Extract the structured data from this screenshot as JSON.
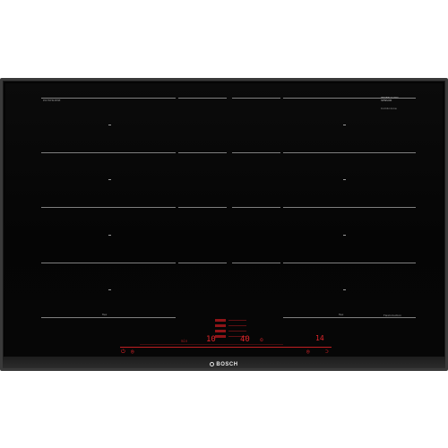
{
  "product": {
    "brand": "BOSCH",
    "top_left_label": "PXY875DE3E",
    "top_right_label": "PERFECT FRY SENSOR",
    "top_right_sublabel": "Combi zone",
    "bottom_right_label": "FlexInduction",
    "bottom_left_zone_label": "flex",
    "bottom_right_zone_label": "flex"
  },
  "display": {
    "timer_value": "10",
    "center_value": "40",
    "right_value": "14",
    "center_unit": "min",
    "center_icon_glyph": "⏲",
    "left_power_glyph": "⏻",
    "left_small_glyph": "◎",
    "right_small_glyph": "◎",
    "right_end_glyph": "⊃"
  },
  "colors": {
    "glass": "#050505",
    "frame": "#3a3a3a",
    "lines": "#8d8d8d",
    "display_red": "#e3262b"
  },
  "icons": {
    "brand_mark": "bosch-armature-icon",
    "power": "power-icon",
    "timer": "timer-icon"
  }
}
